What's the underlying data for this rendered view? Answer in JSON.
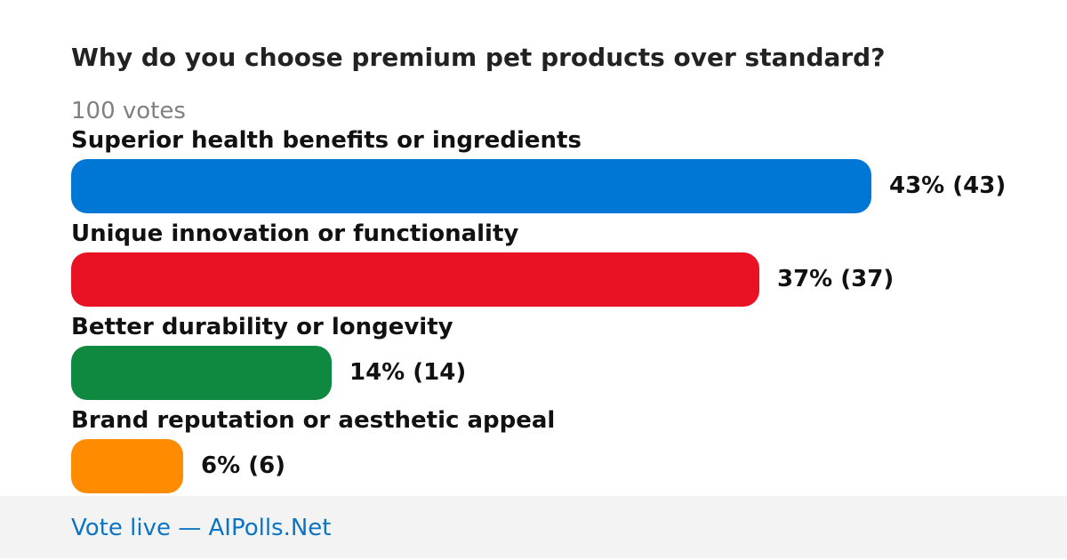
{
  "poll": {
    "question": "Why do you choose premium pet products over standard?",
    "votes_text": "100 votes"
  },
  "chart_data": {
    "type": "bar",
    "orientation": "horizontal",
    "title": "Why do you choose premium pet products over standard?",
    "subtitle": "100 votes",
    "total_votes": 100,
    "categories": [
      "Superior health benefits or ingredients",
      "Unique innovation or functionality",
      "Better durability or longevity",
      "Brand reputation or aesthetic appeal"
    ],
    "percents": [
      43,
      37,
      14,
      6
    ],
    "counts": [
      43,
      37,
      14,
      6
    ],
    "value_labels": [
      "43% (43)",
      "37% (37)",
      "14% (14)",
      "6% (6)"
    ],
    "colors": [
      "#0077d4",
      "#e81224",
      "#0f893f",
      "#ff8c00"
    ],
    "xlim": [
      0,
      43
    ],
    "grid": false,
    "legend": "none"
  },
  "footer": {
    "link_text": "Vote live — AIPolls.Net"
  }
}
